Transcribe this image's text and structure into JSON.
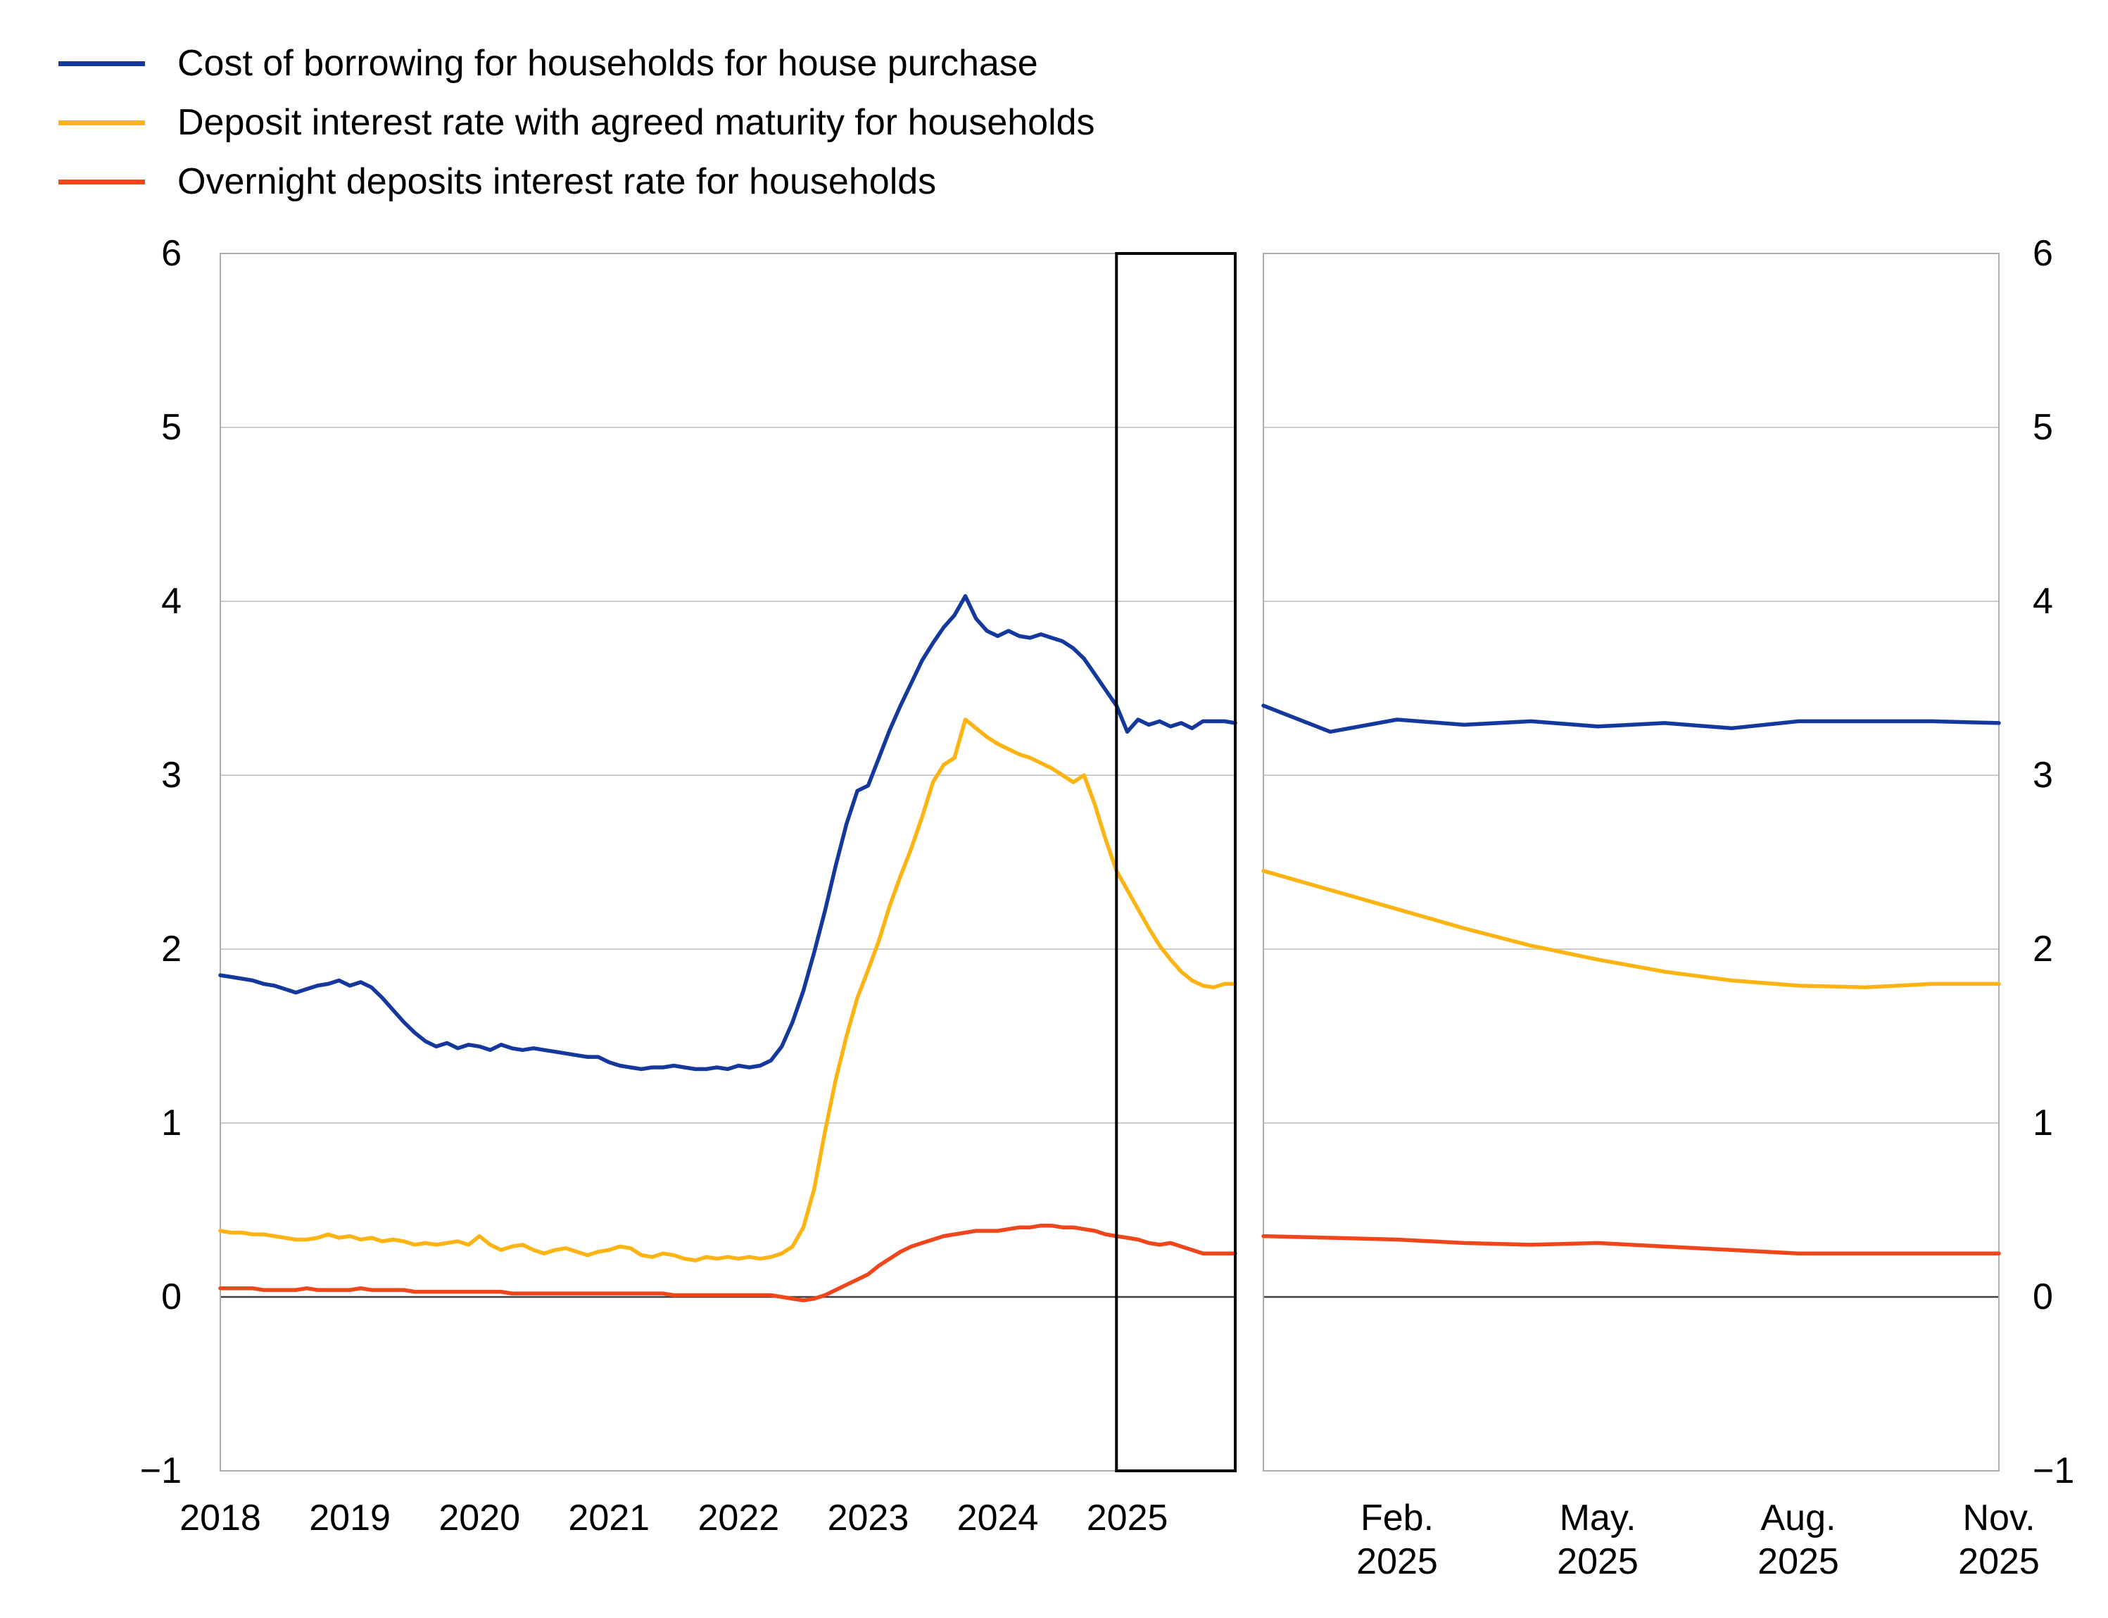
{
  "legend": {
    "items": [
      {
        "label": "Cost of borrowing for households for house purchase",
        "color": "#14389C"
      },
      {
        "label": "Deposit interest rate with agreed maturity for households",
        "color": "#FCB414"
      },
      {
        "label": "Overnight deposits interest rate for households",
        "color": "#F0461C"
      }
    ]
  },
  "chart_data": {
    "type": "line",
    "title": "",
    "ylabel": "",
    "ylim": [
      -1,
      6
    ],
    "grid": "horizontal light-gray gridlines at each integer, darker line at 0",
    "legend_position": "top-left",
    "y_axis": {
      "tick_labels_top_to_bottom": [
        "6",
        "5",
        "4",
        "3",
        "2",
        "1",
        "0",
        "−1"
      ],
      "shown_on_both_sides": true
    },
    "left_panel": {
      "x_frequency": "monthly",
      "x_start": "2018-01",
      "x_end": "2025-11",
      "x_tick_labels": [
        "2018",
        "2019",
        "2020",
        "2021",
        "2022",
        "2023",
        "2024",
        "2025"
      ],
      "highlight_box": {
        "from": "2024-12",
        "to": "2025-11",
        "style": "black rectangle spanning full plot height"
      }
    },
    "right_panel": {
      "description": "zoom of highlighted box period",
      "x_frequency": "monthly",
      "x_start": "2024-12",
      "x_end": "2025-11",
      "x_ticks": [
        {
          "top": "Feb.",
          "bottom": "2025",
          "month_offset": 2
        },
        {
          "top": "May.",
          "bottom": "2025",
          "month_offset": 5
        },
        {
          "top": "Aug.",
          "bottom": "2025",
          "month_offset": 8
        },
        {
          "top": "Nov.",
          "bottom": "2025",
          "month_offset": 11
        }
      ]
    },
    "series": [
      {
        "id": "cost_of_borrowing",
        "name": "Cost of borrowing for households for house purchase",
        "color": "#14389C",
        "values_monthly_2018_01_to_2025_11": [
          1.85,
          1.84,
          1.83,
          1.82,
          1.8,
          1.79,
          1.77,
          1.75,
          1.77,
          1.79,
          1.8,
          1.82,
          1.79,
          1.81,
          1.78,
          1.72,
          1.65,
          1.58,
          1.52,
          1.47,
          1.44,
          1.46,
          1.43,
          1.45,
          1.44,
          1.42,
          1.45,
          1.43,
          1.42,
          1.43,
          1.42,
          1.41,
          1.4,
          1.39,
          1.38,
          1.38,
          1.35,
          1.33,
          1.32,
          1.31,
          1.32,
          1.32,
          1.33,
          1.32,
          1.31,
          1.31,
          1.32,
          1.31,
          1.33,
          1.32,
          1.33,
          1.36,
          1.44,
          1.58,
          1.76,
          1.98,
          2.22,
          2.48,
          2.72,
          2.91,
          2.94,
          3.1,
          3.26,
          3.4,
          3.53,
          3.66,
          3.76,
          3.85,
          3.92,
          4.03,
          3.9,
          3.83,
          3.8,
          3.83,
          3.8,
          3.79,
          3.81,
          3.79,
          3.77,
          3.73,
          3.67,
          3.58,
          3.49,
          3.4,
          3.25,
          3.32,
          3.29,
          3.31,
          3.28,
          3.3,
          3.27,
          3.31,
          3.31,
          3.31,
          3.3
        ]
      },
      {
        "id": "deposit_agreed_maturity",
        "name": "Deposit interest rate with agreed maturity for households",
        "color": "#FCB414",
        "values_monthly_2018_01_to_2025_11": [
          0.38,
          0.37,
          0.37,
          0.36,
          0.36,
          0.35,
          0.34,
          0.33,
          0.33,
          0.34,
          0.36,
          0.34,
          0.35,
          0.33,
          0.34,
          0.32,
          0.33,
          0.32,
          0.3,
          0.31,
          0.3,
          0.31,
          0.32,
          0.3,
          0.35,
          0.3,
          0.27,
          0.29,
          0.3,
          0.27,
          0.25,
          0.27,
          0.28,
          0.26,
          0.24,
          0.26,
          0.27,
          0.29,
          0.28,
          0.24,
          0.23,
          0.25,
          0.24,
          0.22,
          0.21,
          0.23,
          0.22,
          0.23,
          0.22,
          0.23,
          0.22,
          0.23,
          0.25,
          0.29,
          0.4,
          0.62,
          0.95,
          1.25,
          1.5,
          1.72,
          1.88,
          2.05,
          2.25,
          2.42,
          2.58,
          2.76,
          2.96,
          3.06,
          3.1,
          3.32,
          3.27,
          3.22,
          3.18,
          3.15,
          3.12,
          3.1,
          3.07,
          3.04,
          3.0,
          2.96,
          3.0,
          2.83,
          2.63,
          2.45,
          2.34,
          2.23,
          2.12,
          2.02,
          1.94,
          1.87,
          1.82,
          1.79,
          1.78,
          1.8,
          1.8
        ]
      },
      {
        "id": "overnight_deposits",
        "name": "Overnight deposits interest rate for households",
        "color": "#F0461C",
        "values_monthly_2018_01_to_2025_11": [
          0.05,
          0.05,
          0.05,
          0.05,
          0.04,
          0.04,
          0.04,
          0.04,
          0.05,
          0.04,
          0.04,
          0.04,
          0.04,
          0.05,
          0.04,
          0.04,
          0.04,
          0.04,
          0.03,
          0.03,
          0.03,
          0.03,
          0.03,
          0.03,
          0.03,
          0.03,
          0.03,
          0.02,
          0.02,
          0.02,
          0.02,
          0.02,
          0.02,
          0.02,
          0.02,
          0.02,
          0.02,
          0.02,
          0.02,
          0.02,
          0.02,
          0.02,
          0.01,
          0.01,
          0.01,
          0.01,
          0.01,
          0.01,
          0.01,
          0.01,
          0.01,
          0.01,
          0.0,
          -0.01,
          -0.02,
          -0.01,
          0.01,
          0.04,
          0.07,
          0.1,
          0.13,
          0.18,
          0.22,
          0.26,
          0.29,
          0.31,
          0.33,
          0.35,
          0.36,
          0.37,
          0.38,
          0.38,
          0.38,
          0.39,
          0.4,
          0.4,
          0.41,
          0.41,
          0.4,
          0.4,
          0.39,
          0.38,
          0.36,
          0.35,
          0.34,
          0.33,
          0.31,
          0.3,
          0.31,
          0.29,
          0.27,
          0.25,
          0.25,
          0.25,
          0.25
        ]
      }
    ],
    "style_colors": {
      "gridline": "#CBCBCB",
      "panel_border": "#ADADAD",
      "zero_line": "#3F3F3F",
      "highlight_box": "#000000",
      "text": "#000000"
    }
  }
}
